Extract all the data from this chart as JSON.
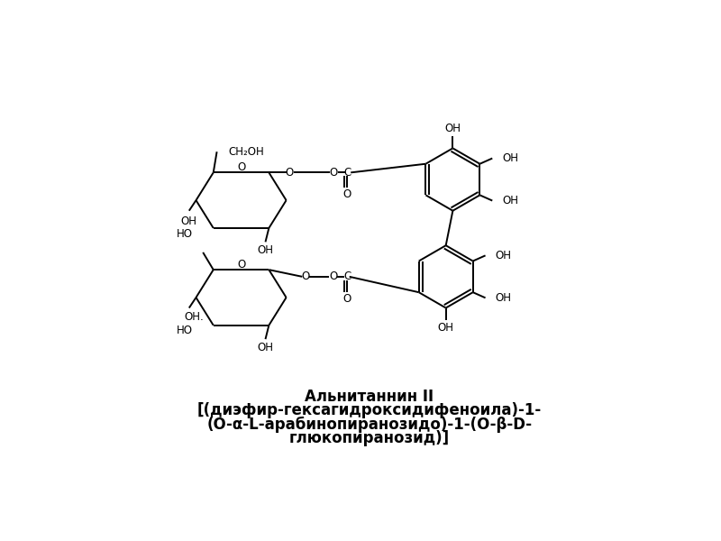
{
  "title_line1": "Альнитаннин II",
  "title_line2": "[(диэфир-гексагидроксидифеноила)-1-",
  "title_line3": "(O-α-L-арабинопиранозидо)-1-(O-β-D-",
  "title_line4": "глюкопиранозид)]",
  "bg_color": "#ffffff",
  "line_color": "#000000",
  "font_size_title": 12,
  "font_size_labels": 8.5
}
